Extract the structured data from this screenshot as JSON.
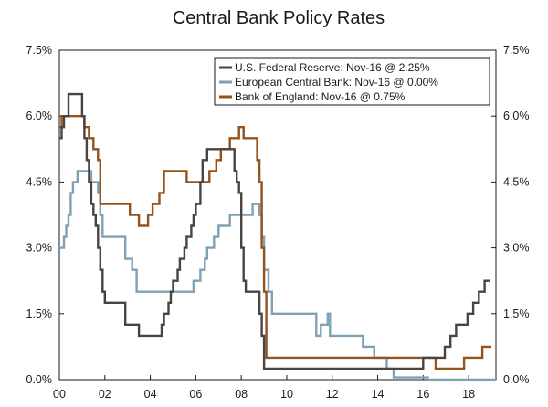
{
  "chart_data": {
    "type": "line",
    "title": "Central Bank Policy Rates",
    "xlabel": "",
    "ylabel": "",
    "xlim": [
      2000,
      2019.2
    ],
    "ylim": [
      0,
      7.5
    ],
    "y_ticks": [
      0,
      1.5,
      3.0,
      4.5,
      6.0,
      7.5
    ],
    "y_tick_labels_left": [
      "0.0%",
      "1.5%",
      "3.0%",
      "4.5%",
      "6.0%",
      "7.5%"
    ],
    "y_tick_labels_right": [
      "0.0%",
      "1.5%",
      "3.0%",
      "4.5%",
      "6.0%",
      "7.5%"
    ],
    "x_ticks": [
      2000,
      2002,
      2004,
      2006,
      2008,
      2010,
      2012,
      2014,
      2016,
      2018
    ],
    "x_tick_labels": [
      "00",
      "02",
      "04",
      "06",
      "08",
      "10",
      "12",
      "14",
      "16",
      "18"
    ],
    "grid": false,
    "legend_position": "top-right",
    "series": [
      {
        "name": "U.S. Federal Reserve: Nov-16 @ 2.25%",
        "color": "#4a4340",
        "x": [
          2000.0,
          2000.1,
          2000.2,
          2000.4,
          2001.0,
          2001.1,
          2001.2,
          2001.3,
          2001.4,
          2001.5,
          2001.6,
          2001.7,
          2001.8,
          2001.9,
          2002.0,
          2002.9,
          2003.5,
          2004.5,
          2004.6,
          2004.8,
          2004.9,
          2005.0,
          2005.2,
          2005.3,
          2005.5,
          2005.6,
          2005.8,
          2005.9,
          2006.0,
          2006.2,
          2006.3,
          2006.5,
          2007.7,
          2007.8,
          2007.9,
          2008.0,
          2008.1,
          2008.2,
          2008.3,
          2008.8,
          2008.9,
          2009.0,
          2015.95,
          2016.0,
          2016.95,
          2017.2,
          2017.45,
          2017.95,
          2018.2,
          2018.45,
          2018.7,
          2018.95
        ],
        "y": [
          5.5,
          5.75,
          6.0,
          6.5,
          6.0,
          5.5,
          5.0,
          4.5,
          4.0,
          3.75,
          3.5,
          3.0,
          2.5,
          2.0,
          1.75,
          1.25,
          1.0,
          1.25,
          1.5,
          1.75,
          2.0,
          2.25,
          2.5,
          2.75,
          3.0,
          3.25,
          3.5,
          3.75,
          4.0,
          4.5,
          5.0,
          5.25,
          4.75,
          4.5,
          4.25,
          3.0,
          2.25,
          2.0,
          2.0,
          1.5,
          1.0,
          0.25,
          0.25,
          0.5,
          0.75,
          1.0,
          1.25,
          1.5,
          1.75,
          2.0,
          2.25,
          2.25
        ]
      },
      {
        "name": "European Central Bank: Nov-16 @ 0.00%",
        "color": "#7fa1b6",
        "x": [
          2000.0,
          2000.2,
          2000.3,
          2000.4,
          2000.5,
          2000.6,
          2000.8,
          2001.4,
          2001.7,
          2001.8,
          2001.9,
          2002.9,
          2003.2,
          2003.4,
          2005.9,
          2006.2,
          2006.4,
          2006.5,
          2006.8,
          2007.0,
          2007.5,
          2008.5,
          2008.8,
          2008.9,
          2009.0,
          2009.2,
          2009.35,
          2011.3,
          2011.5,
          2011.8,
          2011.9,
          2013.35,
          2013.85,
          2014.4,
          2014.7,
          2016.2,
          2019.2
        ],
        "y": [
          3.0,
          3.25,
          3.5,
          3.75,
          4.25,
          4.5,
          4.75,
          4.5,
          4.25,
          3.75,
          3.25,
          2.75,
          2.5,
          2.0,
          2.25,
          2.5,
          2.75,
          3.0,
          3.25,
          3.5,
          3.75,
          4.0,
          3.75,
          3.25,
          2.5,
          2.0,
          1.5,
          1.0,
          1.25,
          1.5,
          1.0,
          0.75,
          0.5,
          0.25,
          0.05,
          0.0,
          0.0
        ]
      },
      {
        "name": "Bank of England: Nov-16 @ 0.75%",
        "color": "#94521d",
        "x": [
          2000.0,
          2000.1,
          2001.1,
          2001.3,
          2001.5,
          2001.7,
          2001.8,
          2003.1,
          2003.5,
          2003.9,
          2004.1,
          2004.4,
          2004.6,
          2005.6,
          2006.6,
          2006.9,
          2007.1,
          2007.5,
          2007.9,
          2008.1,
          2008.7,
          2008.8,
          2008.9,
          2009.0,
          2009.1,
          2016.55,
          2017.8,
          2018.6,
          2019.0
        ],
        "y": [
          5.75,
          6.0,
          5.75,
          5.5,
          5.25,
          5.0,
          4.0,
          3.75,
          3.5,
          3.75,
          4.0,
          4.25,
          4.75,
          4.5,
          4.75,
          5.0,
          5.25,
          5.5,
          5.75,
          5.5,
          5.0,
          4.5,
          3.0,
          2.0,
          0.5,
          0.25,
          0.5,
          0.75,
          0.75
        ]
      }
    ]
  }
}
